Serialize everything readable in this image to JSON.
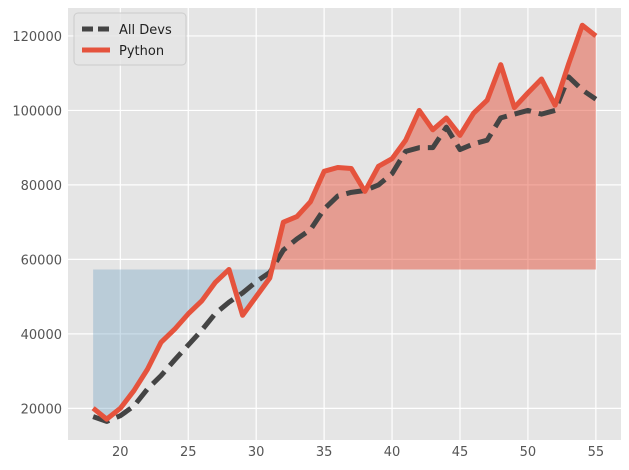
{
  "chart_data": {
    "type": "line",
    "title": "",
    "xlabel": "",
    "ylabel": "",
    "x": [
      18,
      19,
      20,
      21,
      22,
      23,
      24,
      25,
      26,
      27,
      28,
      29,
      30,
      31,
      32,
      33,
      34,
      35,
      36,
      37,
      38,
      39,
      40,
      41,
      42,
      43,
      44,
      45,
      46,
      47,
      48,
      49,
      50,
      51,
      52,
      53,
      54,
      55
    ],
    "series": [
      {
        "name": "All Devs",
        "color": "#444444",
        "style": "dashed",
        "values": [
          17784,
          16500,
          18012,
          20628,
          25206,
          28787,
          32994,
          37000,
          41000,
          45500,
          48500,
          51000,
          54000,
          56500,
          62500,
          65500,
          68000,
          73500,
          77000,
          78000,
          78500,
          80000,
          83000,
          89000,
          90000,
          90000,
          95500,
          89500,
          91000,
          92000,
          98000,
          99000,
          100000,
          99000,
          100000,
          109000,
          105500,
          103000
        ]
      },
      {
        "name": "Python",
        "color": "#e5533d",
        "style": "solid",
        "values": [
          20046,
          17100,
          20000,
          24744,
          30500,
          37732,
          41247,
          45372,
          48876,
          53850,
          57287,
          45000,
          50000,
          55000,
          70000,
          71500,
          75500,
          83640,
          84666,
          84392,
          78254,
          85000,
          87038,
          91991,
          100000,
          94796,
          97962,
          93302,
          99240,
          102736,
          112285,
          100771,
          104708,
          108423,
          101407,
          112542,
          122870,
          120000
        ]
      }
    ],
    "fill": {
      "baseline": 57287,
      "above_color": "#e5533d",
      "below_color": "#6a9ec0",
      "alpha": 0.25
    },
    "xlim": [
      16.15,
      56.85
    ],
    "ylim": [
      11500,
      127500
    ],
    "xticks": [
      20,
      25,
      30,
      35,
      40,
      45,
      50,
      55
    ],
    "yticks": [
      20000,
      40000,
      60000,
      80000,
      100000,
      120000
    ],
    "grid": true,
    "legend_position": "top-left",
    "background": "#e5e5e5"
  }
}
